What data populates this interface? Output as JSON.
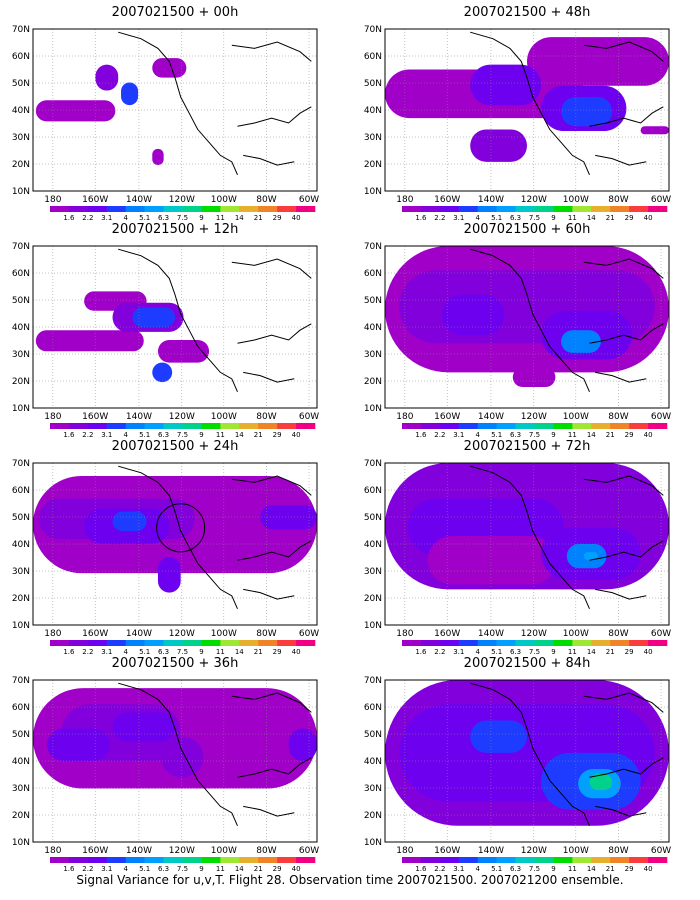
{
  "footer": "Signal Variance for u,v,T. Flight 28. Observation time 2007021500. 2007021200 ensemble.",
  "colorbar": {
    "labels": [
      "1.6",
      "2.2",
      "3.1",
      "4",
      "5.1",
      "6.3",
      "7.5",
      "9",
      "11",
      "14",
      "21",
      "29",
      "40"
    ],
    "colors": [
      "#a000c8",
      "#8200dc",
      "#6e00f0",
      "#1e3cff",
      "#0082ff",
      "#00a0ff",
      "#00c8c8",
      "#00d28c",
      "#00dc00",
      "#a0e632",
      "#e6af2d",
      "#f08228",
      "#fa3c3c",
      "#f00082"
    ]
  },
  "axes": {
    "x_ticks": [
      "180",
      "160W",
      "140W",
      "120W",
      "100W",
      "80W",
      "60W"
    ],
    "y_ticks": [
      "10N",
      "20N",
      "30N",
      "40N",
      "50N",
      "60N",
      "70N"
    ]
  },
  "panels": [
    {
      "title": "2007021500 + 00h",
      "level": 1
    },
    {
      "title": "2007021500 + 48h",
      "level": 3
    },
    {
      "title": "2007021500 + 12h",
      "level": 1
    },
    {
      "title": "2007021500 + 60h",
      "level": 4
    },
    {
      "title": "2007021500 + 24h",
      "level": 2
    },
    {
      "title": "2007021500 + 72h",
      "level": 4
    },
    {
      "title": "2007021500 + 36h",
      "level": 3
    },
    {
      "title": "2007021500 + 84h",
      "level": 5
    }
  ],
  "chart_data": {
    "type": "heatmap",
    "title": "",
    "xlabel": "",
    "ylabel": "",
    "x_range": [
      "170E",
      "60W"
    ],
    "y_range": [
      "10N",
      "70N"
    ],
    "grid": true,
    "legend": "bottom colorbar per panel",
    "colorbar_levels": [
      1.6,
      2.2,
      3.1,
      4,
      5.1,
      6.3,
      7.5,
      9,
      11,
      14,
      21,
      29,
      40
    ],
    "series": [
      {
        "name": "2007021500 + 00h"
      },
      {
        "name": "2007021500 + 12h"
      },
      {
        "name": "2007021500 + 24h"
      },
      {
        "name": "2007021500 + 36h"
      },
      {
        "name": "2007021500 + 48h"
      },
      {
        "name": "2007021500 + 60h"
      },
      {
        "name": "2007021500 + 72h"
      },
      {
        "name": "2007021500 + 84h"
      }
    ]
  }
}
